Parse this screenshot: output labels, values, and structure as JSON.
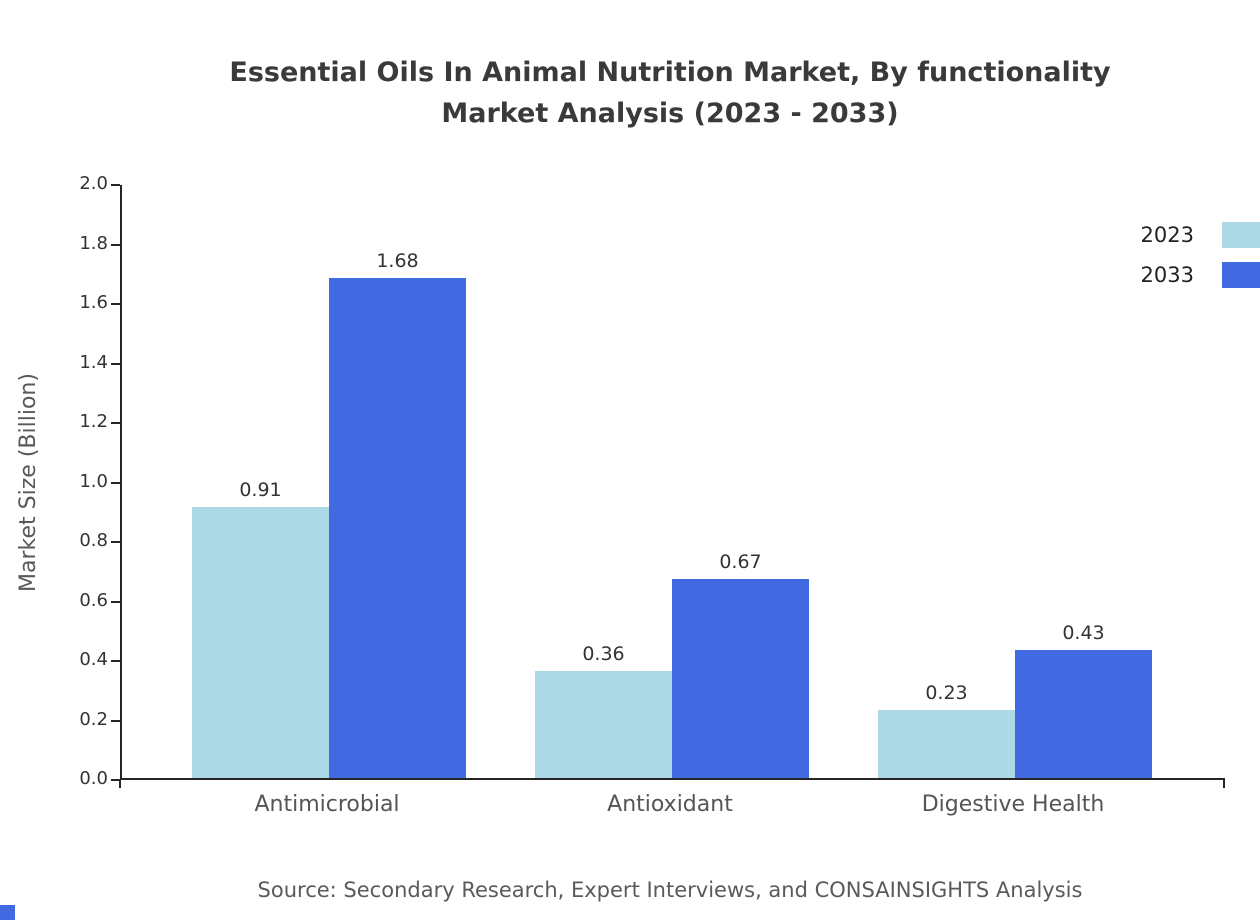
{
  "title": {
    "line1": "Essential Oils In Animal Nutrition Market, By functionality",
    "line2": "Market Analysis (2023 - 2033)"
  },
  "chart_data": {
    "type": "bar",
    "title": "Essential Oils In Animal Nutrition Market, By functionality Market Analysis (2023 - 2033)",
    "categories": [
      "Antimicrobial",
      "Antioxidant",
      "Digestive Health"
    ],
    "series": [
      {
        "name": "2023",
        "color": "#ADD8E6",
        "values": [
          0.91,
          0.36,
          0.23
        ]
      },
      {
        "name": "2033",
        "color": "#4169E1",
        "values": [
          1.68,
          0.67,
          0.43
        ]
      }
    ],
    "xlabel": "",
    "ylabel": "Market Size (Billion)",
    "ylim": [
      0,
      2.0
    ],
    "ytick_step": 0.2,
    "grid": false,
    "legend_position": "upper-right",
    "value_labels": true
  },
  "source_note": "Source: Secondary Research, Expert Interviews, and CONSAINSIGHTS Analysis",
  "colors": {
    "axis": "#262626",
    "title_text": "#3a3a3a",
    "tick_text": "#333333",
    "category_text": "#555555",
    "value_label_text": "#333333",
    "legend_text": "#222222",
    "source_text": "#5a5a5a",
    "corner_mark": "#4169E1"
  }
}
